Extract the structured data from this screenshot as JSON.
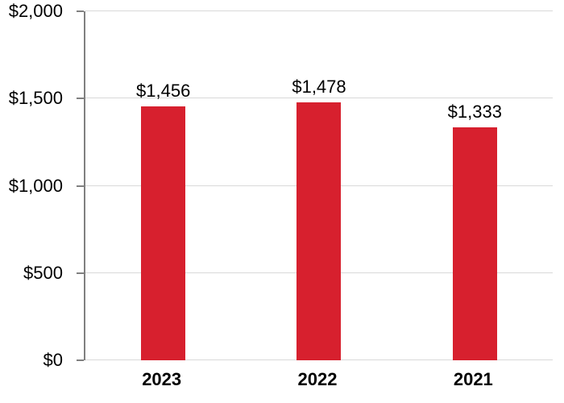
{
  "chart_data": {
    "type": "bar",
    "title": "",
    "xlabel": "",
    "ylabel": "",
    "categories": [
      "2023",
      "2022",
      "2021"
    ],
    "values": [
      1456,
      1478,
      1333
    ],
    "bar_labels": [
      "$1,456",
      "$1,478",
      "$1,333"
    ],
    "yticks": [
      {
        "value": 2000,
        "label": "$2,000"
      },
      {
        "value": 1500,
        "label": "$1,500"
      },
      {
        "value": 1000,
        "label": "$1,000"
      },
      {
        "value": 500,
        "label": "$500"
      },
      {
        "value": 0,
        "label": "$0"
      }
    ],
    "ylim": [
      0,
      2000
    ],
    "grid": true,
    "legend": "none",
    "colors": {
      "bar": "#D7202E",
      "axis": "#808080",
      "gridline": "#D9D9D9",
      "text": "#000000",
      "background": "#FFFFFF"
    }
  }
}
